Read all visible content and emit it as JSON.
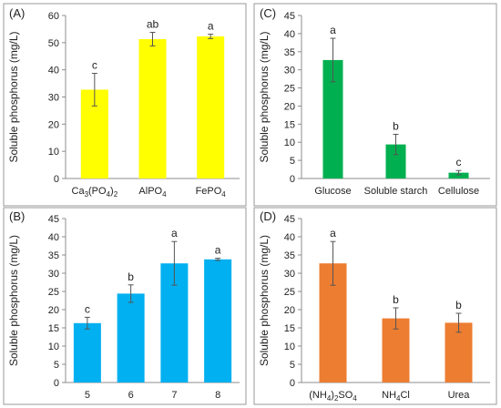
{
  "y_axis_title": "Soluble phosphorus (mg/L)",
  "chart_data": [
    {
      "panel": "(A)",
      "type": "bar",
      "color": "#FFFF00",
      "ylim": [
        0,
        60
      ],
      "yticks": [
        0,
        10,
        20,
        30,
        40,
        50,
        60
      ],
      "ylabel": "Soluble phosphorus (mg/L)",
      "categories": [
        {
          "parts": [
            {
              "t": "Ca"
            },
            {
              "t": "3",
              "sub": true
            },
            {
              "t": "(PO"
            },
            {
              "t": "4",
              "sub": true
            },
            {
              "t": ")"
            },
            {
              "t": "2",
              "sub": true
            }
          ]
        },
        {
          "parts": [
            {
              "t": "AlPO"
            },
            {
              "t": "4",
              "sub": true
            }
          ]
        },
        {
          "parts": [
            {
              "t": "FePO"
            },
            {
              "t": "4",
              "sub": true
            }
          ]
        }
      ],
      "values": [
        32.7,
        51.3,
        52.3
      ],
      "errors": [
        6.0,
        2.5,
        0.8
      ],
      "letters": [
        "c",
        "ab",
        "a"
      ]
    },
    {
      "panel": "(C)",
      "type": "bar",
      "color": "#00B050",
      "ylim": [
        0,
        45
      ],
      "yticks": [
        0,
        5,
        10,
        15,
        20,
        25,
        30,
        35,
        40,
        45
      ],
      "ylabel": "Soluble phosphorus (mg/L)",
      "categories": [
        {
          "parts": [
            {
              "t": "Glucose"
            }
          ]
        },
        {
          "parts": [
            {
              "t": "Soluble starch"
            }
          ]
        },
        {
          "parts": [
            {
              "t": "Cellulose"
            }
          ]
        }
      ],
      "values": [
        32.7,
        9.4,
        1.6
      ],
      "errors": [
        6.0,
        2.8,
        0.6
      ],
      "letters": [
        "a",
        "b",
        "c"
      ]
    },
    {
      "panel": "(B)",
      "type": "bar",
      "color": "#00B0F0",
      "ylim": [
        0,
        45
      ],
      "yticks": [
        0,
        5,
        10,
        15,
        20,
        25,
        30,
        35,
        40,
        45
      ],
      "ylabel": "Soluble phosphorus (mg/L)",
      "categories": [
        {
          "parts": [
            {
              "t": "5"
            }
          ]
        },
        {
          "parts": [
            {
              "t": "6"
            }
          ]
        },
        {
          "parts": [
            {
              "t": "7"
            }
          ]
        },
        {
          "parts": [
            {
              "t": "8"
            }
          ]
        }
      ],
      "values": [
        16.3,
        24.4,
        32.7,
        33.8
      ],
      "errors": [
        1.6,
        2.4,
        6.0,
        0.3
      ],
      "letters": [
        "c",
        "b",
        "a",
        "a"
      ]
    },
    {
      "panel": "(D)",
      "type": "bar",
      "color": "#ED7D31",
      "ylim": [
        0,
        45
      ],
      "yticks": [
        0,
        5,
        10,
        15,
        20,
        25,
        30,
        35,
        40,
        45
      ],
      "ylabel": "Soluble phosphorus (mg/L)",
      "categories": [
        {
          "parts": [
            {
              "t": "(NH"
            },
            {
              "t": "4",
              "sub": true
            },
            {
              "t": ")"
            },
            {
              "t": "2",
              "sub": true
            },
            {
              "t": "SO"
            },
            {
              "t": "4",
              "sub": true
            }
          ]
        },
        {
          "parts": [
            {
              "t": "NH"
            },
            {
              "t": "4",
              "sub": true
            },
            {
              "t": "Cl"
            }
          ]
        },
        {
          "parts": [
            {
              "t": "Urea"
            }
          ]
        }
      ],
      "values": [
        32.7,
        17.6,
        16.4
      ],
      "errors": [
        6.0,
        2.9,
        2.6
      ],
      "letters": [
        "a",
        "b",
        "b"
      ]
    }
  ]
}
